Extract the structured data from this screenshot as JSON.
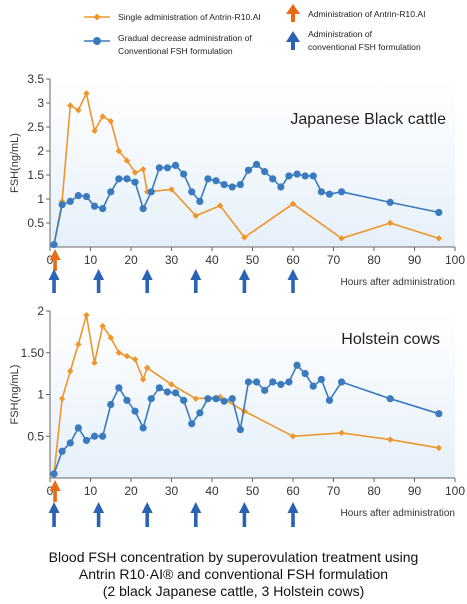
{
  "colors": {
    "single": "#f0952a",
    "gradual": "#3a7bbf",
    "arrow_orange": "#ea6a12",
    "arrow_blue": "#2a62b4",
    "axis": "#666666",
    "plot_bg_top": "#ffffff",
    "plot_bg_bottom": "#e6f0fa"
  },
  "legend": {
    "single_label": "Single administration of Antrin-R10.AI",
    "gradual_label_line1": "Gradual decrease administration of",
    "gradual_label_line2": "Conventional FSH formulation",
    "arrow_orange_label": "Administration of Antrin-R10.AI",
    "arrow_blue_label_line1": "Administration of",
    "arrow_blue_label_line2": "conventional FSH formulation"
  },
  "caption": {
    "line1": "Blood FSH concentration by superovulation treatment using",
    "line2": "Antrin R10·AI® and conventional FSH formulation",
    "line3": "(2 black  Japanese cattle, 3 Holstein cows)"
  },
  "chart_data": [
    {
      "type": "line",
      "title": "Japanese Black cattle",
      "xlabel": "Hours after administration",
      "ylabel": "FSH(ng/mL)",
      "xlim": [
        0,
        100
      ],
      "ylim": [
        0,
        3.5
      ],
      "xticks": [
        0,
        10,
        20,
        30,
        40,
        50,
        60,
        70,
        80,
        90,
        100
      ],
      "yticks": [
        0.5,
        1,
        1.5,
        2,
        2.5,
        3,
        3.5
      ],
      "ytick_labels": [
        "0.5",
        "1",
        "1.5",
        "2",
        "2.5",
        "3",
        "3.5"
      ],
      "grid": false,
      "series": [
        {
          "name": "Single administration of Antrin-R10.AI",
          "marker": "diamond",
          "x": [
            1,
            3,
            5,
            7,
            9,
            11,
            13,
            15,
            17,
            19,
            21,
            23,
            24,
            30,
            36,
            42,
            48,
            60,
            72,
            84,
            96
          ],
          "y": [
            0.05,
            0.95,
            2.95,
            2.85,
            3.2,
            2.42,
            2.72,
            2.62,
            2.0,
            1.8,
            1.55,
            1.62,
            1.15,
            1.2,
            0.65,
            0.86,
            0.2,
            0.9,
            0.18,
            0.5,
            0.18
          ]
        },
        {
          "name": "Gradual decrease administration of Conventional FSH formulation",
          "marker": "circle",
          "x": [
            1,
            3,
            5,
            7,
            9,
            11,
            13,
            15,
            17,
            19,
            21,
            23,
            25,
            27,
            29,
            31,
            33,
            35,
            37,
            39,
            41,
            43,
            45,
            47,
            49,
            51,
            53,
            55,
            57,
            59,
            61,
            63,
            65,
            67,
            69,
            72,
            84,
            96
          ],
          "y": [
            0.05,
            0.88,
            0.95,
            1.07,
            1.05,
            0.85,
            0.8,
            1.15,
            1.42,
            1.42,
            1.35,
            0.8,
            1.15,
            1.65,
            1.65,
            1.7,
            1.52,
            1.15,
            0.95,
            1.42,
            1.38,
            1.3,
            1.25,
            1.3,
            1.6,
            1.72,
            1.57,
            1.42,
            1.25,
            1.48,
            1.52,
            1.48,
            1.48,
            1.15,
            1.1,
            1.15,
            0.93,
            0.72
          ]
        }
      ],
      "arrows": {
        "orange_x": [
          1
        ],
        "blue_x": [
          1,
          12,
          24,
          36,
          48,
          60
        ]
      }
    },
    {
      "type": "line",
      "title": "Holstein cows",
      "xlabel": "Hours after administration",
      "ylabel": "FSH(ng/mL)",
      "xlim": [
        0,
        100
      ],
      "ylim": [
        0,
        2
      ],
      "xticks": [
        0,
        10,
        20,
        30,
        40,
        50,
        60,
        70,
        80,
        90,
        100
      ],
      "yticks": [
        0.5,
        1,
        1.5,
        2
      ],
      "ytick_labels": [
        "0.5",
        "1",
        "1.50",
        "2"
      ],
      "grid": false,
      "series": [
        {
          "name": "Single administration of Antrin-R10.AI",
          "marker": "diamond",
          "x": [
            1,
            3,
            5,
            7,
            9,
            11,
            13,
            15,
            17,
            19,
            21,
            23,
            24,
            30,
            36,
            42,
            48,
            60,
            72,
            84,
            96
          ],
          "y": [
            0.05,
            0.95,
            1.28,
            1.6,
            1.95,
            1.38,
            1.82,
            1.68,
            1.5,
            1.46,
            1.42,
            1.18,
            1.32,
            1.12,
            0.95,
            0.97,
            0.8,
            0.5,
            0.54,
            0.46,
            0.36
          ]
        },
        {
          "name": "Gradual decrease administration of Conventional FSH formulation",
          "marker": "circle",
          "x": [
            1,
            3,
            5,
            7,
            9,
            11,
            13,
            15,
            17,
            19,
            21,
            23,
            25,
            27,
            29,
            31,
            33,
            35,
            37,
            39,
            41,
            43,
            45,
            47,
            49,
            51,
            53,
            55,
            57,
            59,
            61,
            63,
            65,
            67,
            69,
            72,
            84,
            96
          ],
          "y": [
            0.05,
            0.32,
            0.42,
            0.6,
            0.45,
            0.5,
            0.5,
            0.88,
            1.08,
            0.93,
            0.8,
            0.6,
            0.95,
            1.08,
            1.03,
            1.02,
            0.93,
            0.65,
            0.78,
            0.95,
            0.95,
            0.92,
            0.95,
            0.58,
            1.15,
            1.15,
            1.05,
            1.15,
            1.12,
            1.15,
            1.35,
            1.25,
            1.1,
            1.18,
            0.93,
            1.15,
            0.95,
            0.77
          ]
        }
      ],
      "arrows": {
        "orange_x": [
          1
        ],
        "blue_x": [
          1,
          12,
          24,
          36,
          48,
          60
        ]
      }
    }
  ]
}
